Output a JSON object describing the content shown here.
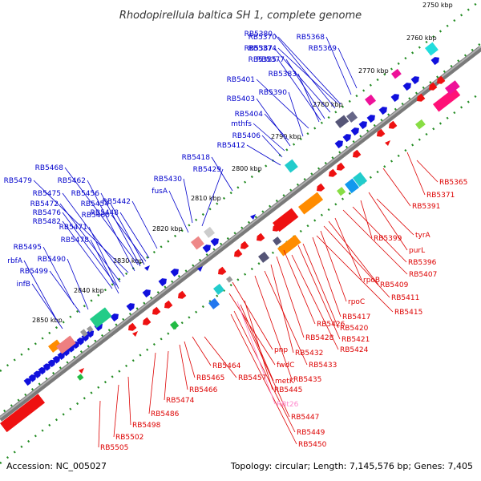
{
  "title": "Rhodopirellula baltica SH 1, complete genome",
  "footer": {
    "accession": "Accession: NC_005027",
    "summary": "Topology: circular; Length: 7,145,576 bp; Genes: 7,405"
  },
  "colors": {
    "backbone": "#808080",
    "upper_labels": "#0000cc",
    "lower_labels": "#dd0000",
    "trna_label": "#ff88cc",
    "ruler_dots": "#228b22",
    "forward_genes": "#1010dd",
    "reverse_genes": "#ee1111"
  },
  "scale_marks": [
    "2750 kbp",
    "2760 kbp",
    "2770 kbp",
    "2780 kbp",
    "2790 kbp",
    "2800 kbp",
    "2810 kbp",
    "2820 kbp",
    "2830 kbp",
    "2840 kbp",
    "2850 kbp"
  ],
  "upper_labels": [
    "RB5380",
    "RB5370",
    "RB5368",
    "RB5387",
    "RB5374",
    "RB5369",
    "RB5385",
    "RB5377",
    "RB5383",
    "RB5401",
    "RB5390",
    "RB5403",
    "RB5404",
    "mthfs",
    "RB5406",
    "RB5412",
    "RB5418",
    "RB5429",
    "RB5430",
    "fusA",
    "RB5442",
    "RB5468",
    "RB5479",
    "RB5462",
    "RB5475",
    "RB5456",
    "RB5472",
    "RB5454",
    "RB5476",
    "RB5460",
    "RB5482",
    "RB5448",
    "RB5471",
    "RB5478",
    "RB5495",
    "rbfA",
    "RB5490",
    "RB5499",
    "infB"
  ],
  "lower_labels": [
    "RB5365",
    "RB5371",
    "RB5391",
    "tyrA",
    "RB5399",
    "purL",
    "RB5396",
    "RB5407",
    "rpoB",
    "RB5409",
    "RB5411",
    "rpoC",
    "RB5415",
    "RB5417",
    "RB5420",
    "RB5421",
    "RB5426",
    "RB5424",
    "RB5428",
    "pnp",
    "RB5432",
    "fwdC",
    "RB5433",
    "RB5464",
    "RB5435",
    "RB5457",
    "metK",
    "RB5465",
    "RB5445",
    "RB5466",
    "RB5474",
    "RB5447",
    "RB5486",
    "RB5449",
    "RB5498",
    "RB5450",
    "RB5502",
    "RB5505"
  ],
  "trna_label": "RBt26"
}
